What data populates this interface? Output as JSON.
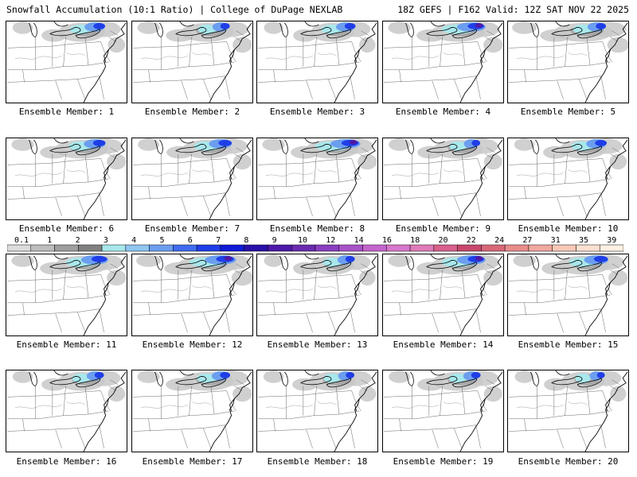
{
  "header": {
    "left": "Snowfall Accumulation (10:1 Ratio) | College of DuPage NEXLAB",
    "right": "18Z GEFS | F162 Valid: 12Z SAT NOV 22 2025"
  },
  "legend": {
    "ticks": [
      "0.1",
      "1",
      "2",
      "3",
      "4",
      "5",
      "6",
      "7",
      "8",
      "9",
      "10",
      "12",
      "14",
      "16",
      "18",
      "20",
      "22",
      "24",
      "27",
      "31",
      "35",
      "39"
    ],
    "colors": [
      "#dcdcdc",
      "#bdbdbd",
      "#9e9e9e",
      "#808080",
      "#a8e8ec",
      "#8fc6f2",
      "#6c9ef0",
      "#3f6cf0",
      "#1f3ee8",
      "#101ad8",
      "#2a10a8",
      "#4d1aa8",
      "#6a2ab0",
      "#8a3ec0",
      "#a852c8",
      "#c465cc",
      "#d878cc",
      "#e07ab8",
      "#d8608c",
      "#c8486c",
      "#d86878",
      "#e88c8c",
      "#f0a8a0",
      "#f8c8b8",
      "#fce0d0",
      "#fff0e4"
    ]
  },
  "members": [
    {
      "label": "Ensemble Member: 1",
      "blue": 0.55,
      "gray": 0.5
    },
    {
      "label": "Ensemble Member: 2",
      "blue": 0.4,
      "gray": 0.6
    },
    {
      "label": "Ensemble Member: 3",
      "blue": 0.5,
      "gray": 0.45
    },
    {
      "label": "Ensemble Member: 4",
      "blue": 0.85,
      "gray": 0.6
    },
    {
      "label": "Ensemble Member: 5",
      "blue": 0.45,
      "gray": 0.7
    },
    {
      "label": "Ensemble Member: 6",
      "blue": 0.6,
      "gray": 0.6
    },
    {
      "label": "Ensemble Member: 7",
      "blue": 0.65,
      "gray": 0.55
    },
    {
      "label": "Ensemble Member: 8",
      "blue": 0.9,
      "gray": 0.6
    },
    {
      "label": "Ensemble Member: 9",
      "blue": 0.35,
      "gray": 0.55
    },
    {
      "label": "Ensemble Member: 10",
      "blue": 0.55,
      "gray": 0.5
    },
    {
      "label": "Ensemble Member: 11",
      "blue": 0.8,
      "gray": 0.6
    },
    {
      "label": "Ensemble Member: 12",
      "blue": 0.95,
      "gray": 0.7
    },
    {
      "label": "Ensemble Member: 13",
      "blue": 0.4,
      "gray": 0.45
    },
    {
      "label": "Ensemble Member: 14",
      "blue": 0.85,
      "gray": 0.6
    },
    {
      "label": "Ensemble Member: 15",
      "blue": 0.7,
      "gray": 0.6
    },
    {
      "label": "Ensemble Member: 16",
      "blue": 0.4,
      "gray": 0.5
    },
    {
      "label": "Ensemble Member: 17",
      "blue": 0.45,
      "gray": 0.6
    },
    {
      "label": "Ensemble Member: 18",
      "blue": 0.35,
      "gray": 0.5
    },
    {
      "label": "Ensemble Member: 19",
      "blue": 0.4,
      "gray": 0.55
    },
    {
      "label": "Ensemble Member: 20",
      "blue": 0.3,
      "gray": 0.45
    }
  ]
}
